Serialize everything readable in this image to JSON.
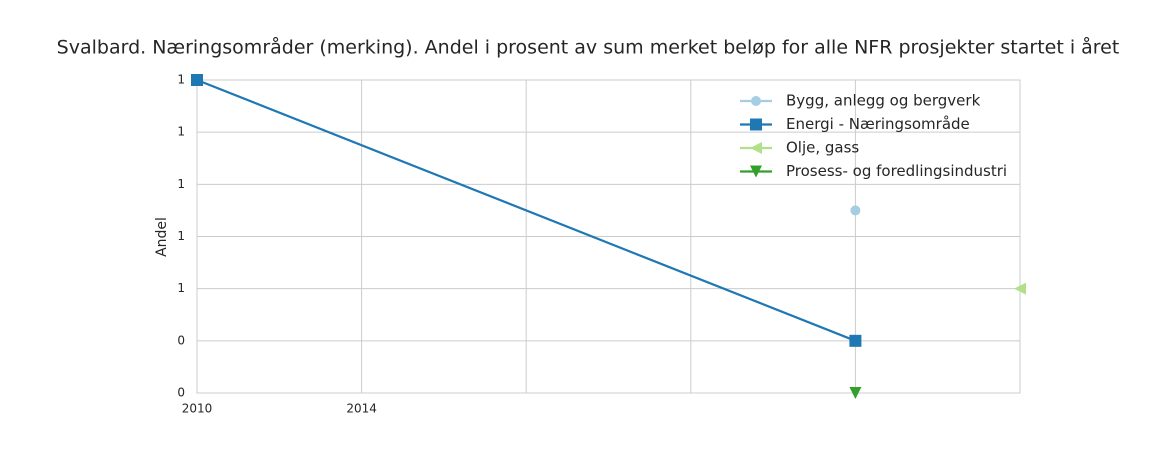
{
  "chart_data": {
    "type": "line",
    "title": "Svalbard. Næringsområder (merking). Andel i prosent av sum merket beløp for alle NFR prosjekter startet i året",
    "y_label": "Andel",
    "categories": [
      "2010",
      "2014",
      null,
      null,
      null,
      null
    ],
    "series": [
      {
        "name": "Bygg, anlegg og bergverk",
        "color": "#a6cee3",
        "marker": "circle",
        "values": [
          null,
          null,
          null,
          null,
          0.9,
          null
        ]
      },
      {
        "name": "Energi - Næringsområde",
        "color": "#1f78b4",
        "marker": "square",
        "values": [
          1.4,
          null,
          null,
          null,
          0.4,
          null
        ]
      },
      {
        "name": "Olje, gass",
        "color": "#b2df8a",
        "marker": "triangle-left",
        "values": [
          null,
          null,
          null,
          null,
          null,
          0.6
        ]
      },
      {
        "name": "Prosess- og foredlingsindustri",
        "color": "#33a02c",
        "marker": "triangle-down",
        "values": [
          null,
          null,
          null,
          null,
          0.2,
          null
        ]
      }
    ],
    "ylim": [
      0.2,
      1.4
    ],
    "yticks": [
      {
        "value": 0.2,
        "label": "0"
      },
      {
        "value": 0.4,
        "label": "0"
      },
      {
        "value": 0.6,
        "label": "1"
      },
      {
        "value": 0.8,
        "label": "1"
      },
      {
        "value": 1.0,
        "label": "1"
      },
      {
        "value": 1.2,
        "label": "1"
      },
      {
        "value": 1.4,
        "label": "1"
      }
    ],
    "grid": true,
    "legend": "upper right"
  }
}
